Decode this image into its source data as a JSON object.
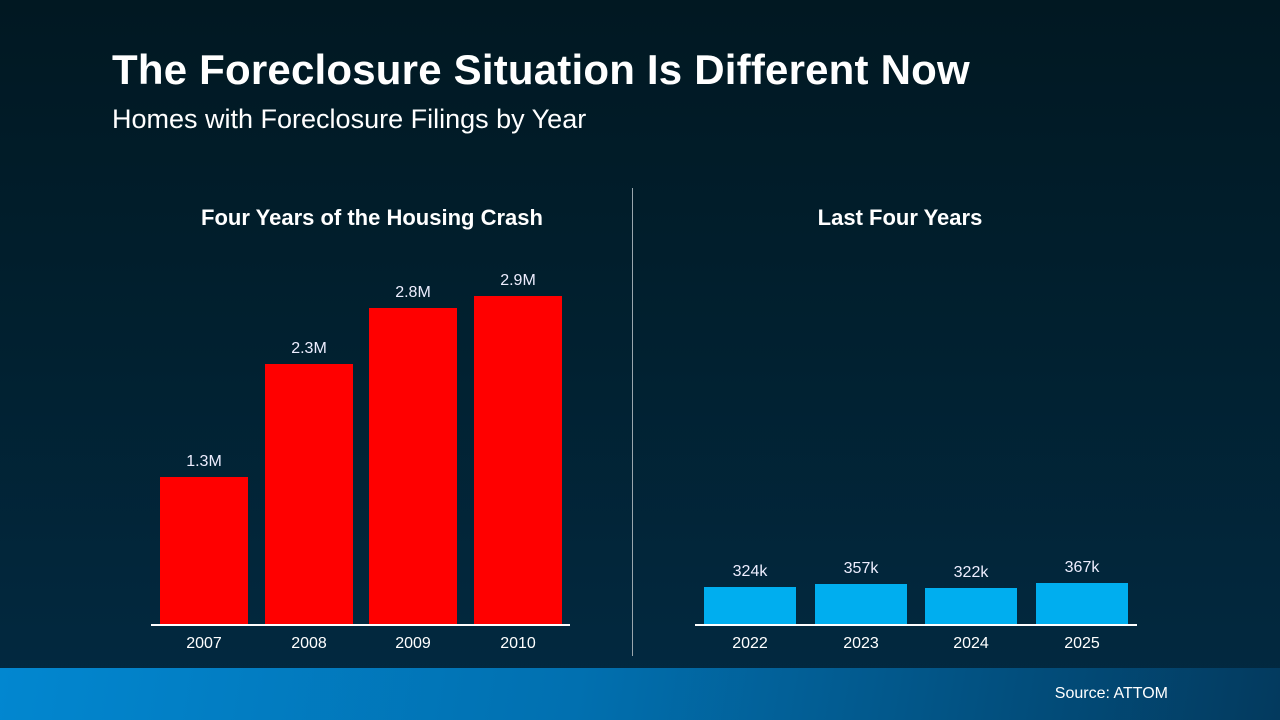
{
  "title": "The Foreclosure Situation Is Different Now",
  "subtitle": "Homes with Foreclosure Filings by Year",
  "source": "Source: ATTOM",
  "chart_data": [
    {
      "type": "bar",
      "title": "Four Years of the Housing Crash",
      "categories": [
        "2007",
        "2008",
        "2009",
        "2010"
      ],
      "values": [
        1300000,
        2300000,
        2800000,
        2900000
      ],
      "labels": [
        "1.3M",
        "2.3M",
        "2.8M",
        "2.9M"
      ],
      "color": "#ff0000",
      "grid": false
    },
    {
      "type": "bar",
      "title": "Last Four Years",
      "categories": [
        "2022",
        "2023",
        "2024",
        "2025"
      ],
      "values": [
        324000,
        357000,
        322000,
        367000
      ],
      "labels": [
        "324k",
        "357k",
        "322k",
        "367k"
      ],
      "color": "#00aeef",
      "grid": false
    }
  ]
}
